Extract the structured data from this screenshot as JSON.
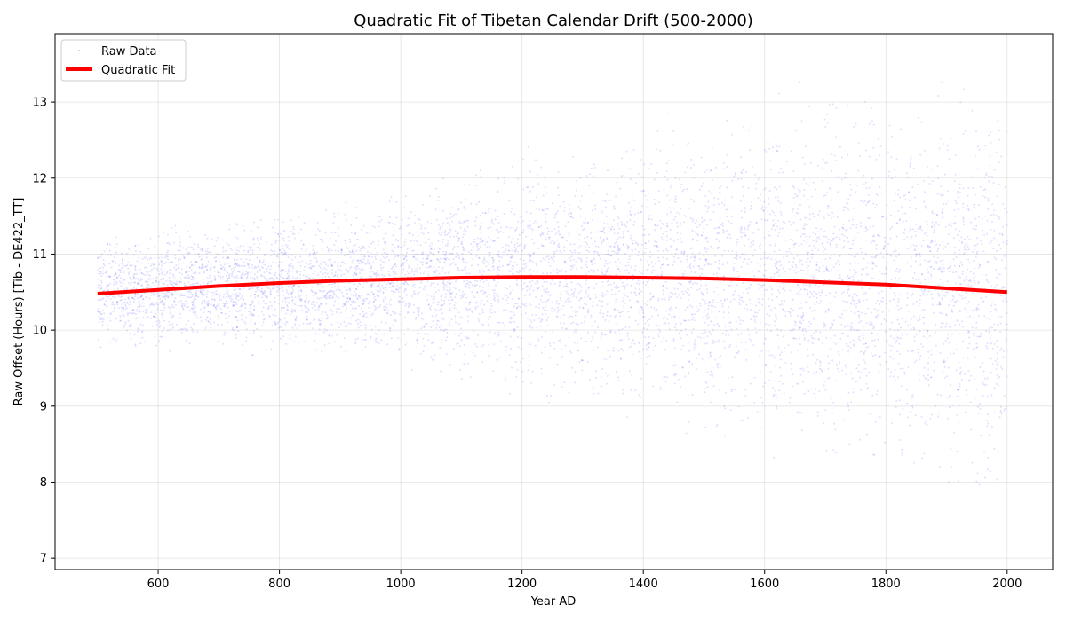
{
  "chart_data": {
    "type": "scatter",
    "title": "Quadratic Fit of Tibetan Calendar Drift (500-2000)",
    "xlabel": "Year AD",
    "ylabel": "Raw Offset (Hours) [Tib - DE422_TT]",
    "xlim": [
      430,
      2075
    ],
    "ylim": [
      6.85,
      13.9
    ],
    "x_ticks": [
      600,
      800,
      1000,
      1200,
      1400,
      1600,
      1800,
      2000
    ],
    "y_ticks": [
      7,
      8,
      9,
      10,
      11,
      12,
      13
    ],
    "grid": true,
    "legend_position": "upper-left",
    "series": [
      {
        "name": "Raw Data",
        "kind": "scatter",
        "color": "#0000ff",
        "x_range": [
          500,
          2000
        ],
        "center_at": [
          [
            500,
            10.5
          ],
          [
            1000,
            10.7
          ],
          [
            1250,
            10.7
          ],
          [
            1500,
            10.7
          ],
          [
            2000,
            10.5
          ]
        ],
        "spread_half_width_at": [
          [
            500,
            0.75
          ],
          [
            800,
            1.0
          ],
          [
            1000,
            1.2
          ],
          [
            1200,
            1.6
          ],
          [
            1400,
            2.0
          ],
          [
            1600,
            2.4
          ],
          [
            1800,
            2.7
          ],
          [
            2000,
            3.0
          ]
        ]
      },
      {
        "name": "Quadratic Fit",
        "kind": "line",
        "color": "#ff0000",
        "x": [
          500,
          600,
          700,
          800,
          900,
          1000,
          1100,
          1200,
          1300,
          1400,
          1500,
          1600,
          1700,
          1800,
          1900,
          2000
        ],
        "y": [
          10.48,
          10.53,
          10.58,
          10.62,
          10.65,
          10.67,
          10.69,
          10.7,
          10.7,
          10.69,
          10.68,
          10.66,
          10.63,
          10.6,
          10.55,
          10.5
        ]
      }
    ]
  }
}
